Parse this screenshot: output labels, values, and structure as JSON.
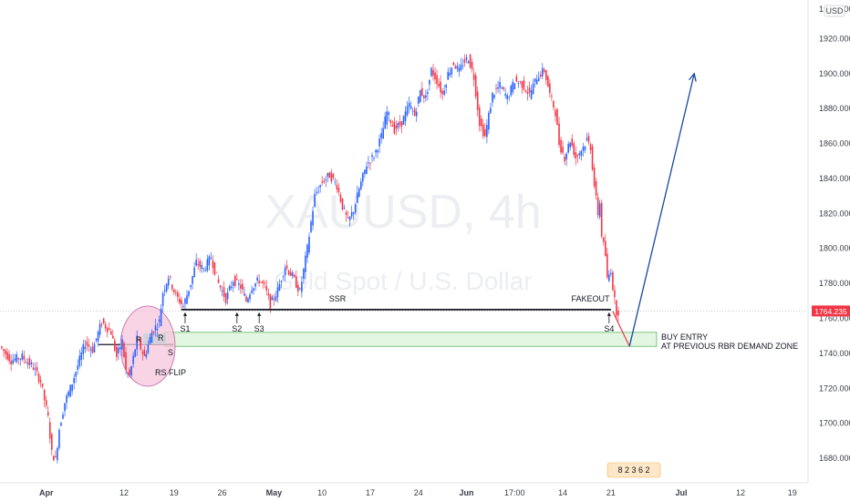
{
  "chart_data": {
    "type": "candlestick",
    "watermark": {
      "symbol": "XAUUSD, 4h",
      "description": "Gold Spot / U.S. Dollar"
    },
    "currency": "USD",
    "y_axis": {
      "range": [
        1667,
        1940
      ],
      "ticks": [
        1680,
        1700,
        1720,
        1740,
        1760,
        1780,
        1800,
        1820,
        1840,
        1860,
        1880,
        1900,
        1920
      ],
      "tick_labels": [
        "1680.000",
        "1700.000",
        "1720.000",
        "1740.000",
        "1760.000",
        "1780.000",
        "1800.000",
        "1820.000",
        "1840.000",
        "1860.000",
        "1880.000",
        "1900.000",
        "1920.000"
      ],
      "top_label": "1940.000"
    },
    "x_axis": {
      "labels": [
        "Apr",
        "12",
        "19",
        "26",
        "May",
        "10",
        "17",
        "24",
        "Jun",
        "17:00",
        "14",
        "21",
        "Jul",
        "12",
        "19"
      ],
      "label_index": [
        24,
        66,
        93,
        119,
        147,
        173,
        199,
        225,
        251,
        277,
        303,
        329,
        367,
        399,
        427
      ],
      "bold": [
        "Apr",
        "May",
        "Jun",
        "Jul"
      ]
    },
    "current_price": {
      "value": 1764.235,
      "label": "1764.235",
      "color": "#f23645"
    },
    "colors": {
      "up": "#2962ff",
      "down": "#f23645",
      "arrow": "#1848a0",
      "zone_fill": "#e3f6e2",
      "zone_stroke": "#4caf50",
      "circle_fill": "#f7c6dc",
      "circle_stroke": "#c062a6"
    },
    "anchors": [
      [
        0,
        1744
      ],
      [
        6,
        1736
      ],
      [
        12,
        1738
      ],
      [
        18,
        1732
      ],
      [
        22,
        1724
      ],
      [
        26,
        1703
      ],
      [
        28,
        1683
      ],
      [
        30,
        1679
      ],
      [
        32,
        1697
      ],
      [
        35,
        1712
      ],
      [
        38,
        1720
      ],
      [
        42,
        1733
      ],
      [
        46,
        1746
      ],
      [
        50,
        1742
      ],
      [
        55,
        1758
      ],
      [
        60,
        1752
      ],
      [
        63,
        1738
      ],
      [
        66,
        1747
      ],
      [
        68,
        1730
      ],
      [
        70,
        1727
      ],
      [
        74,
        1748
      ],
      [
        78,
        1738
      ],
      [
        82,
        1752
      ],
      [
        86,
        1758
      ],
      [
        88,
        1775
      ],
      [
        91,
        1784
      ],
      [
        95,
        1773
      ],
      [
        99,
        1767
      ],
      [
        103,
        1780
      ],
      [
        106,
        1792
      ],
      [
        110,
        1788
      ],
      [
        114,
        1795
      ],
      [
        118,
        1780
      ],
      [
        122,
        1771
      ],
      [
        126,
        1782
      ],
      [
        130,
        1778
      ],
      [
        133,
        1770
      ],
      [
        136,
        1778
      ],
      [
        140,
        1782
      ],
      [
        143,
        1778
      ],
      [
        146,
        1768
      ],
      [
        150,
        1776
      ],
      [
        154,
        1790
      ],
      [
        158,
        1784
      ],
      [
        162,
        1775
      ],
      [
        166,
        1800
      ],
      [
        170,
        1830
      ],
      [
        174,
        1838
      ],
      [
        178,
        1842
      ],
      [
        182,
        1836
      ],
      [
        185,
        1824
      ],
      [
        188,
        1815
      ],
      [
        191,
        1822
      ],
      [
        194,
        1834
      ],
      [
        198,
        1848
      ],
      [
        202,
        1853
      ],
      [
        206,
        1864
      ],
      [
        209,
        1878
      ],
      [
        213,
        1868
      ],
      [
        217,
        1872
      ],
      [
        221,
        1882
      ],
      [
        224,
        1876
      ],
      [
        227,
        1890
      ],
      [
        230,
        1886
      ],
      [
        233,
        1902
      ],
      [
        236,
        1896
      ],
      [
        239,
        1888
      ],
      [
        242,
        1900
      ],
      [
        245,
        1906
      ],
      [
        248,
        1901
      ],
      [
        250,
        1906
      ],
      [
        253,
        1909
      ],
      [
        256,
        1898
      ],
      [
        259,
        1872
      ],
      [
        262,
        1864
      ],
      [
        266,
        1888
      ],
      [
        270,
        1893
      ],
      [
        274,
        1886
      ],
      [
        278,
        1896
      ],
      [
        282,
        1894
      ],
      [
        286,
        1888
      ],
      [
        290,
        1898
      ],
      [
        294,
        1902
      ],
      [
        297,
        1888
      ],
      [
        300,
        1878
      ],
      [
        302,
        1860
      ],
      [
        305,
        1852
      ],
      [
        308,
        1862
      ],
      [
        311,
        1852
      ],
      [
        315,
        1858
      ],
      [
        317,
        1862
      ],
      [
        319,
        1858
      ],
      [
        321,
        1836
      ],
      [
        323,
        1820
      ],
      [
        324,
        1826
      ],
      [
        325,
        1808
      ],
      [
        327,
        1796
      ],
      [
        328,
        1782
      ],
      [
        330,
        1788
      ],
      [
        331,
        1778
      ],
      [
        332,
        1770
      ],
      [
        333,
        1764
      ]
    ],
    "horizontal_levels": [
      {
        "label": "SSR",
        "price": 1765
      },
      {
        "label": "RS FLIP",
        "price": 1745
      }
    ],
    "demand_zone": {
      "price_top": 1752,
      "price_bottom": 1744,
      "label_line1": "BUY ENTRY",
      "label_line2": "AT PREVIOUS RBR DEMAND ZONE"
    },
    "annotations": {
      "ssr": "SSR",
      "fakeout": "FAKEOUT",
      "rs_flip": "RS FLIP",
      "s_labels": [
        "S1",
        "S2",
        "S3",
        "S4"
      ],
      "s_index": [
        99,
        127,
        139,
        328
      ],
      "small_labels": [
        "R",
        "R",
        "S"
      ],
      "events": "8 2 3 6 2"
    },
    "projection": {
      "from": [
        330,
        1764
      ],
      "via": [
        339,
        1744
      ],
      "to": [
        374,
        1900
      ]
    }
  }
}
